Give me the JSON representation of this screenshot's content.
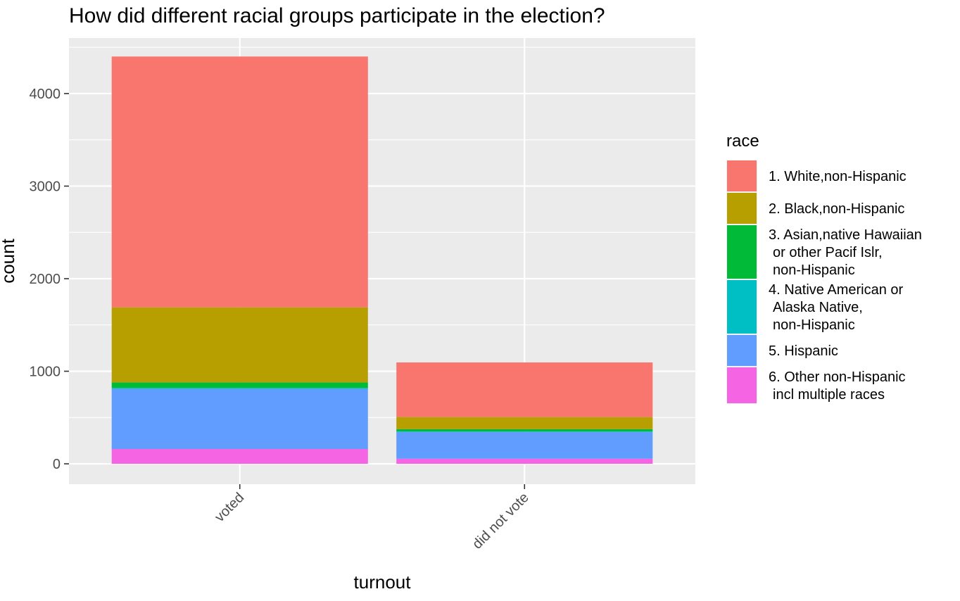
{
  "chart_data": {
    "type": "bar",
    "stacked": true,
    "title": "How did different racial groups participate in the election?",
    "xlabel": "turnout",
    "ylabel": "count",
    "categories": [
      "voted",
      "did not vote"
    ],
    "ylim": [
      -220,
      4600
    ],
    "yticks": [
      0,
      1000,
      2000,
      3000,
      4000
    ],
    "grid": true,
    "legend": {
      "title": "race",
      "position": "right"
    },
    "series": [
      {
        "name": [
          "1. White,non-Hispanic"
        ],
        "color": "#F8766D",
        "values": [
          2710,
          590
        ]
      },
      {
        "name": [
          "2. Black,non-Hispanic"
        ],
        "color": "#B79F00",
        "values": [
          810,
          130
        ]
      },
      {
        "name": [
          "3. Asian,native Hawaiian",
          "or other Pacif Islr,",
          "non-Hispanic"
        ],
        "color": "#00BA38",
        "values": [
          60,
          25
        ]
      },
      {
        "name": [
          "4. Native American or",
          "Alaska Native,",
          "non-Hispanic"
        ],
        "color": "#00BFC4",
        "values": [
          10,
          5
        ]
      },
      {
        "name": [
          "5. Hispanic"
        ],
        "color": "#619CFF",
        "values": [
          650,
          290
        ]
      },
      {
        "name": [
          "6. Other non-Hispanic",
          "incl multiple races"
        ],
        "color": "#F564E3",
        "values": [
          160,
          55
        ]
      }
    ]
  }
}
